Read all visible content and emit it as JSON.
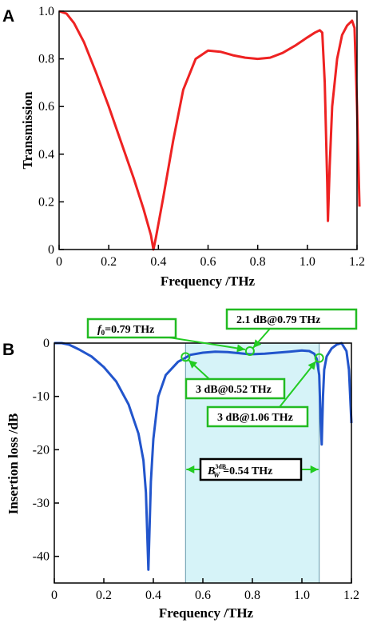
{
  "chart_data": [
    {
      "panel": "A",
      "type": "line",
      "xlabel": "Frequency /THz",
      "ylabel": "Transmission",
      "xlim": [
        0,
        1.2
      ],
      "ylim": [
        0,
        1.0
      ],
      "xticks": [
        "0",
        "0.2",
        "0.4",
        "0.6",
        "0.8",
        "1.0",
        "1.2"
      ],
      "yticks": [
        "0",
        "0.2",
        "0.4",
        "0.6",
        "0.8",
        "1.0"
      ],
      "color": "#ee2222",
      "series": [
        {
          "x": [
            0,
            0.03,
            0.06,
            0.1,
            0.15,
            0.2,
            0.25,
            0.3,
            0.34,
            0.37,
            0.38,
            0.39,
            0.42,
            0.46,
            0.5,
            0.55,
            0.6,
            0.65,
            0.7,
            0.75,
            0.8,
            0.85,
            0.9,
            0.95,
            1.0,
            1.03,
            1.04,
            1.05,
            1.06,
            1.07,
            1.08,
            1.083,
            1.09,
            1.1,
            1.12,
            1.14,
            1.16,
            1.18,
            1.19,
            1.2,
            1.21
          ],
          "y": [
            1.0,
            0.99,
            0.95,
            0.87,
            0.74,
            0.6,
            0.45,
            0.3,
            0.17,
            0.06,
            0.0,
            0.05,
            0.22,
            0.46,
            0.67,
            0.8,
            0.835,
            0.83,
            0.815,
            0.805,
            0.8,
            0.805,
            0.825,
            0.855,
            0.89,
            0.91,
            0.915,
            0.92,
            0.91,
            0.7,
            0.28,
            0.12,
            0.35,
            0.6,
            0.8,
            0.9,
            0.94,
            0.96,
            0.93,
            0.6,
            0.18
          ]
        }
      ]
    },
    {
      "panel": "B",
      "type": "line",
      "xlabel": "Frequency /THz",
      "ylabel": "Insertion loss /dB",
      "xlim": [
        0,
        1.2
      ],
      "ylim": [
        -45,
        0
      ],
      "xticks": [
        "0",
        "0.2",
        "0.4",
        "0.6",
        "0.8",
        "1.0",
        "1.2"
      ],
      "yticks": [
        "0",
        "-10",
        "-20",
        "-30",
        "-40"
      ],
      "color": "#2255cc",
      "band": [
        0.53,
        1.07
      ],
      "band_color": "#d6f3f8",
      "series": [
        {
          "x": [
            0,
            0.03,
            0.06,
            0.1,
            0.15,
            0.2,
            0.25,
            0.3,
            0.34,
            0.36,
            0.37,
            0.38,
            0.39,
            0.4,
            0.42,
            0.45,
            0.5,
            0.52,
            0.55,
            0.6,
            0.65,
            0.7,
            0.75,
            0.79,
            0.85,
            0.9,
            0.95,
            1.0,
            1.03,
            1.05,
            1.06,
            1.07,
            1.075,
            1.08,
            1.085,
            1.09,
            1.1,
            1.12,
            1.14,
            1.16,
            1.18,
            1.19,
            1.2
          ],
          "y": [
            0,
            0,
            -0.3,
            -1.2,
            -2.5,
            -4.5,
            -7.2,
            -11.5,
            -17,
            -22,
            -28,
            -42.5,
            -26,
            -18,
            -10,
            -6,
            -3.5,
            -3.0,
            -2.2,
            -1.8,
            -1.6,
            -1.7,
            -1.9,
            -2.1,
            -2.0,
            -1.8,
            -1.6,
            -1.4,
            -1.5,
            -2.0,
            -3.0,
            -6,
            -14,
            -19,
            -10,
            -5,
            -2.5,
            -1.0,
            -0.3,
            0,
            -1.5,
            -5,
            -15
          ]
        }
      ],
      "annotations": [
        {
          "id": "f0",
          "prefix": "f",
          "sub": "0",
          "suffix": "=0.79 THz",
          "x": 0.79,
          "y": -1.5
        },
        {
          "id": "loss",
          "text": "2.1 dB@0.79 THz",
          "x": 0.8,
          "y": -1.6
        },
        {
          "id": "low3db",
          "text": "3 dB@0.52 THz",
          "x": 0.53,
          "y": -2.6
        },
        {
          "id": "high3db",
          "text": "3 dB@1.06 THz",
          "x": 1.07,
          "y": -2.8
        },
        {
          "id": "bw",
          "prefix": "B",
          "sub": "W",
          "sup": "3dB",
          "suffix": "=0.54 THz"
        }
      ]
    }
  ],
  "colors": {
    "ann_border": "#22bb22",
    "arrow": "#22cc22"
  }
}
